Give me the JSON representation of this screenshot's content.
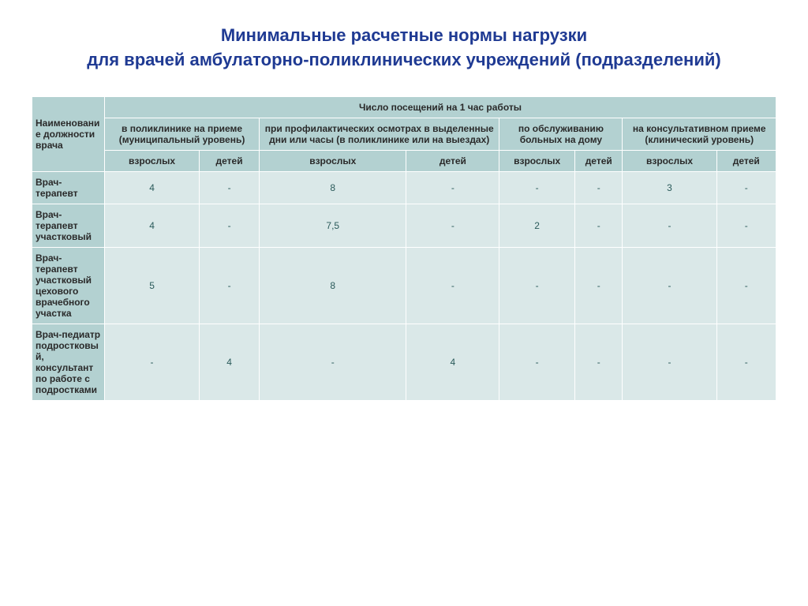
{
  "title_line1": "Минимальные расчетные нормы  нагрузки",
  "title_line2": "для врачей амбулаторно-поликлинических учреждений (подразделений)",
  "table": {
    "header": {
      "name_col": "Наименование должности врача",
      "top_group": "Число посещений на 1 час работы",
      "groups": [
        "в поликлинике на приеме (муниципальный уровень)",
        "при профилактических осмотрах в выделенные дни или часы (в поликлинике или на выездах)",
        "по обслуживанию больных на дому",
        "на консультативном приеме (клинический уровень)"
      ],
      "sub_adults": "взрослых",
      "sub_children": "детей"
    },
    "rows": [
      {
        "name": "Врач-терапевт",
        "cells": [
          "4",
          "-",
          "8",
          "-",
          "-",
          "-",
          "3",
          "-"
        ]
      },
      {
        "name": "Врач-терапевт участковый",
        "cells": [
          "4",
          "-",
          "7,5",
          "-",
          "2",
          "-",
          "-",
          "-"
        ]
      },
      {
        "name": "Врач-терапевт участковый цехового врачебного участка",
        "cells": [
          "5",
          "-",
          "8",
          "-",
          "-",
          "-",
          "-",
          "-"
        ]
      },
      {
        "name": "Врач-педиатр подростковый, консультант по работе с подростками",
        "cells": [
          "-",
          "4",
          "-",
          "4",
          "-",
          "-",
          "-",
          "-"
        ]
      }
    ]
  },
  "colors": {
    "title_color": "#1f3a93",
    "header_bg": "#b3d1d1",
    "cell_bg": "#dae8e8",
    "cell_text": "#2a5a5a",
    "border": "#ffffff"
  }
}
